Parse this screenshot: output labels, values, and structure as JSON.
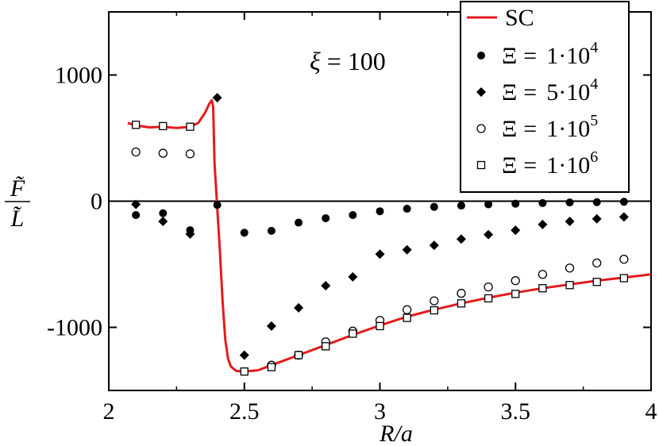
{
  "chart_data": {
    "type": "scatter",
    "xlabel": "R/a",
    "ylabel_numerator": "F̃",
    "ylabel_denominator": "L̃",
    "xlim": [
      2,
      4
    ],
    "ylim": [
      -1500,
      1500
    ],
    "xticks": [
      2,
      2.5,
      3,
      3.5,
      4
    ],
    "xtick_labels": [
      "2",
      "2.5",
      "3",
      "3.5",
      "4"
    ],
    "yticks": [
      -1000,
      0,
      1000
    ],
    "ytick_labels": [
      "-1000",
      "0",
      "1000"
    ],
    "zero_line": true,
    "legend_position": "top-right",
    "annotation": {
      "symbol": "ξ",
      "text": " = 100"
    },
    "series": [
      {
        "name": "SC",
        "kind": "line",
        "color": "#e41a1c",
        "x": [
          2.07,
          2.1,
          2.15,
          2.2,
          2.25,
          2.3,
          2.33,
          2.355,
          2.37,
          2.38,
          2.385,
          2.39,
          2.4,
          2.41,
          2.42,
          2.43,
          2.44,
          2.45,
          2.47,
          2.5,
          2.55,
          2.6,
          2.65,
          2.7,
          2.8,
          2.9,
          3.0,
          3.1,
          3.2,
          3.3,
          3.4,
          3.5,
          3.6,
          3.7,
          3.8,
          3.9,
          4.0
        ],
        "y": [
          620,
          600,
          585,
          590,
          580,
          590,
          620,
          700,
          770,
          800,
          750,
          300,
          -50,
          -400,
          -800,
          -1100,
          -1250,
          -1310,
          -1345,
          -1350,
          -1340,
          -1300,
          -1260,
          -1220,
          -1140,
          -1060,
          -985,
          -915,
          -860,
          -810,
          -765,
          -725,
          -690,
          -660,
          -630,
          -605,
          -580
        ]
      },
      {
        "name": "1·10^4",
        "label_lhs": "Ξ",
        "label_eq": "=",
        "label_mantissa": "1·10",
        "label_exp": "4",
        "marker": "circle-filled",
        "x": [
          2.1,
          2.2,
          2.3,
          2.4,
          2.5,
          2.6,
          2.7,
          2.8,
          2.9,
          3.0,
          3.1,
          3.2,
          3.3,
          3.4,
          3.5,
          3.6,
          3.7,
          3.8,
          3.9
        ],
        "y": [
          -110,
          -95,
          -230,
          -30,
          -250,
          -235,
          -170,
          -135,
          -110,
          -80,
          -60,
          -45,
          -35,
          -25,
          -20,
          -15,
          -10,
          -8,
          -5
        ]
      },
      {
        "name": "5·10^4",
        "label_lhs": "Ξ",
        "label_eq": "=",
        "label_mantissa": "5·10",
        "label_exp": "4",
        "marker": "diamond-filled",
        "x": [
          2.1,
          2.2,
          2.3,
          2.4,
          2.5,
          2.6,
          2.7,
          2.8,
          2.9,
          3.0,
          3.1,
          3.2,
          3.3,
          3.4,
          3.5,
          3.6,
          3.7,
          3.8,
          3.9
        ],
        "y": [
          -25,
          -160,
          -260,
          820,
          -1220,
          -990,
          -845,
          -670,
          -600,
          -420,
          -385,
          -350,
          -300,
          -265,
          -230,
          -185,
          -160,
          -140,
          -125
        ]
      },
      {
        "name": "1·10^5",
        "label_lhs": "Ξ",
        "label_eq": "=",
        "label_mantissa": "1·10",
        "label_exp": "5",
        "marker": "circle-open",
        "x": [
          2.1,
          2.2,
          2.3,
          2.6,
          2.7,
          2.8,
          2.9,
          3.0,
          3.1,
          3.2,
          3.3,
          3.4,
          3.5,
          3.6,
          3.7,
          3.8,
          3.9
        ],
        "y": [
          390,
          380,
          375,
          -1300,
          -1220,
          -1115,
          -1030,
          -945,
          -860,
          -790,
          -730,
          -680,
          -630,
          -580,
          -530,
          -490,
          -460
        ]
      },
      {
        "name": "1·10^6",
        "label_lhs": "Ξ",
        "label_eq": "=",
        "label_mantissa": "1·10",
        "label_exp": "6",
        "marker": "square-open",
        "x": [
          2.1,
          2.2,
          2.3,
          2.5,
          2.6,
          2.7,
          2.8,
          2.9,
          3.0,
          3.1,
          3.2,
          3.3,
          3.4,
          3.5,
          3.6,
          3.7,
          3.8,
          3.9
        ],
        "y": [
          605,
          595,
          590,
          -1350,
          -1315,
          -1220,
          -1150,
          -1050,
          -990,
          -925,
          -865,
          -810,
          -770,
          -735,
          -690,
          -665,
          -640,
          -610
        ]
      }
    ]
  }
}
